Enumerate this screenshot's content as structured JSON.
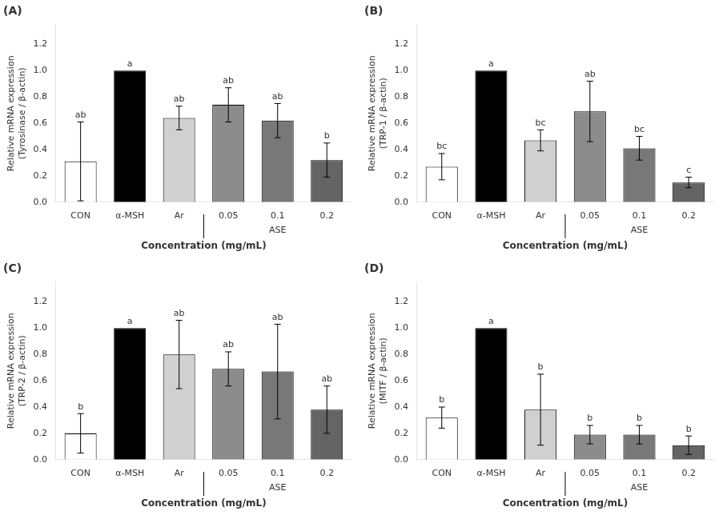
{
  "chart_data": [
    {
      "type": "bar",
      "title": "(A)",
      "y_label": "Relative mRNA expression\n(Tyrosinase / β-actin)",
      "x_label": "Concentration (mg/mL)",
      "categories": [
        "CON",
        "α-MSH",
        "Ar",
        "0.05",
        "0.1",
        "0.2"
      ],
      "values": [
        0.31,
        1.0,
        0.64,
        0.74,
        0.62,
        0.32
      ],
      "errors": [
        0.3,
        0.0,
        0.09,
        0.13,
        0.13,
        0.13
      ],
      "colors": [
        "white",
        "black",
        "#d0d0d0",
        "#8c8c8c",
        "#787878",
        "#646464"
      ],
      "annotations": [
        {
          "text": "ab",
          "category": "CON"
        },
        {
          "text": "a",
          "category": "α-MSH"
        },
        {
          "text": "ab",
          "category": "Ar"
        },
        {
          "text": "ab",
          "category": "0.05"
        },
        {
          "text": "ab",
          "category": "0.1"
        },
        {
          "text": "b",
          "category": "0.2"
        },
        {
          "text": "ASE",
          "categories": [
            "0.05",
            "0.1",
            "0.2"
          ]
        }
      ],
      "ylim": [
        0,
        1.35
      ],
      "yticks": [
        {
          "value": 0,
          "label": "0.0"
        },
        0.2,
        0.4,
        0.6,
        0.8,
        {
          "value": 1.0,
          "label": "1.0"
        },
        1.2
      ],
      "grid": false
    },
    {
      "type": "bar",
      "title": "(B)",
      "y_label": "Relative mRNA expression\n(TRP-1 / β-actin)",
      "x_label": "Concentration (mg/mL)",
      "categories": [
        "CON",
        "α-MSH",
        "Ar",
        "0.05",
        "0.1",
        "0.2"
      ],
      "values": [
        0.27,
        1.0,
        0.47,
        0.69,
        0.41,
        0.15
      ],
      "errors": [
        0.1,
        0.0,
        0.08,
        0.23,
        0.09,
        0.04
      ],
      "colors": [
        "white",
        "black",
        "#d0d0d0",
        "#8c8c8c",
        "#787878",
        "#646464"
      ],
      "annotations": [
        {
          "text": "bc",
          "category": "CON"
        },
        {
          "text": "a",
          "category": "α-MSH"
        },
        {
          "text": "bc",
          "category": "Ar"
        },
        {
          "text": "ab",
          "category": "0.05"
        },
        {
          "text": "bc",
          "category": "0.1"
        },
        {
          "text": "c",
          "category": "0.2"
        },
        {
          "text": "ASE",
          "categories": [
            "0.05",
            "0.1",
            "0.2"
          ]
        }
      ],
      "ylim": [
        0,
        1.35
      ],
      "yticks": [
        {
          "value": 0,
          "label": "0.0"
        },
        0.2,
        0.4,
        0.6,
        0.8,
        {
          "value": 1.0,
          "label": "1.0"
        },
        1.2
      ],
      "grid": false
    },
    {
      "type": "bar",
      "title": "(C)",
      "y_label": "Relative mRNA expression\n(TRP-2 / β-actin)",
      "x_label": "Concentration (mg/mL)",
      "categories": [
        "CON",
        "α-MSH",
        "Ar",
        "0.05",
        "0.1",
        "0.2"
      ],
      "values": [
        0.2,
        1.0,
        0.8,
        0.69,
        0.67,
        0.38
      ],
      "errors": [
        0.15,
        0.0,
        0.26,
        0.13,
        0.36,
        0.18
      ],
      "colors": [
        "white",
        "black",
        "#d0d0d0",
        "#8c8c8c",
        "#787878",
        "#646464"
      ],
      "annotations": [
        {
          "text": "b",
          "category": "CON"
        },
        {
          "text": "a",
          "category": "α-MSH"
        },
        {
          "text": "ab",
          "category": "Ar"
        },
        {
          "text": "ab",
          "category": "0.05"
        },
        {
          "text": "ab",
          "category": "0.1"
        },
        {
          "text": "ab",
          "category": "0.2"
        },
        {
          "text": "ASE",
          "categories": [
            "0.05",
            "0.1",
            "0.2"
          ]
        }
      ],
      "ylim": [
        0,
        1.35
      ],
      "yticks": [
        {
          "value": 0,
          "label": "0.0"
        },
        0.2,
        0.4,
        0.6,
        0.8,
        {
          "value": 1.0,
          "label": "1.0"
        },
        1.2
      ],
      "grid": false
    },
    {
      "type": "bar",
      "title": "(D)",
      "y_label": "Relative mRNA expression\n(MITF / β-actin)",
      "x_label": "Concentration (mg/mL)",
      "categories": [
        "CON",
        "α-MSH",
        "Ar",
        "0.05",
        "0.1",
        "0.2"
      ],
      "values": [
        0.32,
        1.0,
        0.38,
        0.19,
        0.19,
        0.11
      ],
      "errors": [
        0.08,
        0.0,
        0.27,
        0.07,
        0.07,
        0.07
      ],
      "colors": [
        "white",
        "black",
        "#d0d0d0",
        "#8c8c8c",
        "#787878",
        "#646464"
      ],
      "annotations": [
        {
          "text": "b",
          "category": "CON"
        },
        {
          "text": "a",
          "category": "α-MSH"
        },
        {
          "text": "b",
          "category": "Ar"
        },
        {
          "text": "b",
          "category": "0.05"
        },
        {
          "text": "b",
          "category": "0.1"
        },
        {
          "text": "b",
          "category": "0.2"
        },
        {
          "text": "ASE",
          "categories": [
            "0.05",
            "0.1",
            "0.2"
          ]
        }
      ],
      "ylim": [
        0,
        1.35
      ],
      "yticks": [
        {
          "value": 0,
          "label": "0.0"
        },
        0.2,
        0.4,
        0.6,
        0.8,
        {
          "value": 1.0,
          "label": "1.0"
        },
        1.2
      ],
      "grid": false
    }
  ]
}
